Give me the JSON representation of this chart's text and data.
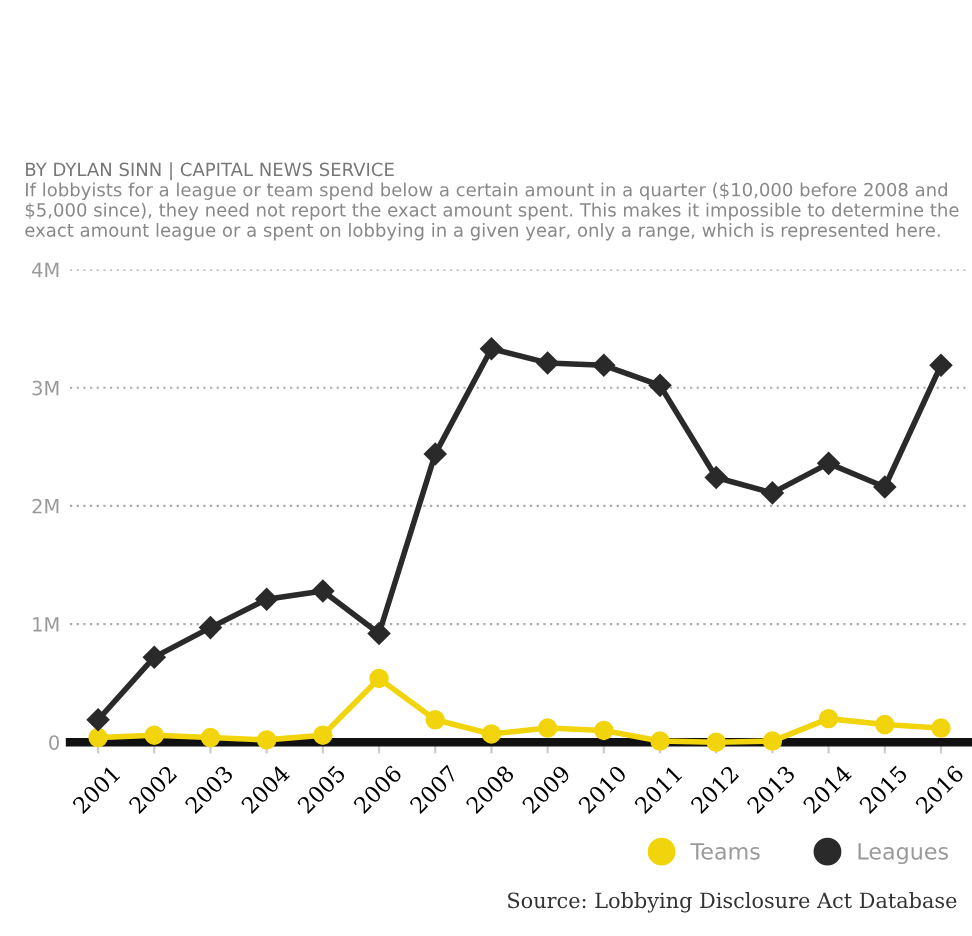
{
  "chart_data": {
    "type": "line",
    "title": "BY DYLAN SINN | CAPITAL NEWS SERVICE",
    "subtitle": "If lobbyists for a league or team spend below a certain amount in a quarter ($10,000 before 2008 and $5,000 since), they need not report the exact amount spent. This makes it impossible to determine the exact amount league or a spent on lobbying in a given year, only a range, which is represented here.",
    "annotations": [
      "Source: Lobbying Disclosure Act Database"
    ],
    "categories": [
      "2001",
      "2002",
      "2003",
      "2004",
      "2005",
      "2006",
      "2007",
      "2008",
      "2009",
      "2010",
      "2011",
      "2012",
      "2013",
      "2014",
      "2015",
      "2016"
    ],
    "series": [
      {
        "name": "Teams",
        "color": "#f2d40c",
        "marker": "circle",
        "values": [
          40000,
          60000,
          40000,
          20000,
          60000,
          540000,
          190000,
          70000,
          120000,
          100000,
          10000,
          0,
          10000,
          200000,
          150000,
          120000
        ]
      },
      {
        "name": "Leagues",
        "color": "#2a2a2a",
        "marker": "diamond",
        "values": [
          190000,
          720000,
          970000,
          1210000,
          1280000,
          920000,
          2440000,
          3330000,
          3210000,
          3190000,
          3020000,
          2240000,
          2110000,
          2360000,
          2160000,
          3190000
        ]
      }
    ],
    "ylim": [
      0,
      4000000
    ],
    "yticks": [
      {
        "value": 0,
        "label": "0"
      },
      {
        "value": 1000000,
        "label": "1M"
      },
      {
        "value": 2000000,
        "label": "2M"
      },
      {
        "value": 3000000,
        "label": "3M"
      },
      {
        "value": 4000000,
        "label": "4M"
      }
    ],
    "grid": "y",
    "legend": "bottom right",
    "line_style": "solid"
  }
}
